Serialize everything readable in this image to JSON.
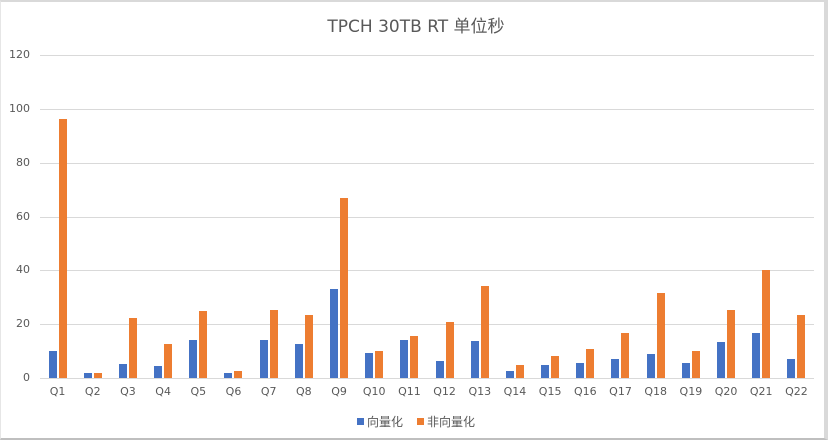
{
  "chart_data": {
    "type": "bar",
    "title": "TPCH 30TB RT 单位秒",
    "xlabel": "",
    "ylabel": "",
    "ylim": [
      0,
      120
    ],
    "yticks": [
      0,
      20,
      40,
      60,
      80,
      100,
      120
    ],
    "grid": true,
    "legend_position": "bottom",
    "categories": [
      "Q1",
      "Q2",
      "Q3",
      "Q4",
      "Q5",
      "Q6",
      "Q7",
      "Q8",
      "Q9",
      "Q10",
      "Q11",
      "Q12",
      "Q13",
      "Q14",
      "Q15",
      "Q16",
      "Q17",
      "Q18",
      "Q19",
      "Q20",
      "Q21",
      "Q22"
    ],
    "series": [
      {
        "name": "向量化",
        "color": "#4472c4",
        "values": [
          9.9,
          1.7,
          5.3,
          4.3,
          14.2,
          2.0,
          14.3,
          12.7,
          32.9,
          9.2,
          14.0,
          6.2,
          13.6,
          2.7,
          4.7,
          5.4,
          6.9,
          8.8,
          5.7,
          13.3,
          16.9,
          6.9
        ]
      },
      {
        "name": "非向量化",
        "color": "#ed7d31",
        "values": [
          96.4,
          1.7,
          22.4,
          12.5,
          24.9,
          2.7,
          25.1,
          23.5,
          67.0,
          9.9,
          15.5,
          20.7,
          34.0,
          4.7,
          8.1,
          10.9,
          16.6,
          31.7,
          10.2,
          25.1,
          40.0,
          23.4
        ]
      }
    ]
  }
}
